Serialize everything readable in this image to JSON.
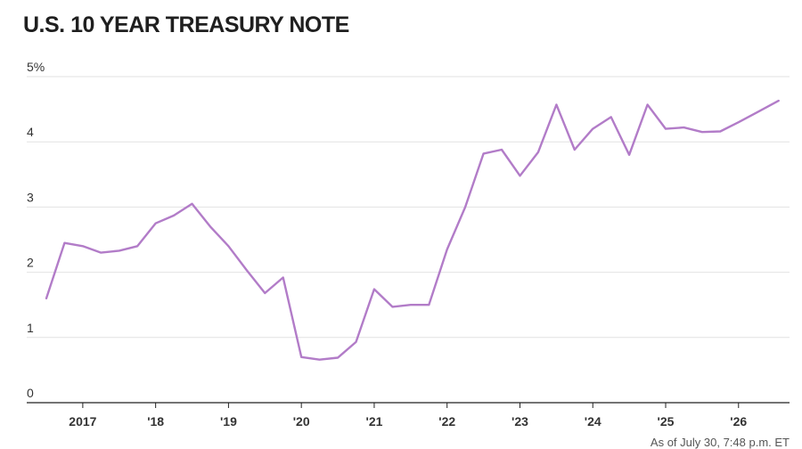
{
  "header": {
    "title": "U.S. 10 YEAR TREASURY NOTE"
  },
  "footnote": "As of July 30, 7:48 p.m. ET",
  "colors": {
    "line": "#b27cc8",
    "grid": "#e2e2e2",
    "axis": "#222222"
  },
  "chart_data": {
    "type": "line",
    "title": "U.S. 10 YEAR TREASURY NOTE",
    "xlabel": "",
    "ylabel": "",
    "x_range": [
      2016.5,
      2026.7
    ],
    "ylim": [
      0,
      5
    ],
    "y_ticks": [
      {
        "value": 0,
        "label": "0"
      },
      {
        "value": 1,
        "label": "1"
      },
      {
        "value": 2,
        "label": "2"
      },
      {
        "value": 3,
        "label": "3"
      },
      {
        "value": 4,
        "label": "4"
      },
      {
        "value": 5,
        "label": "5%"
      }
    ],
    "x_ticks": [
      {
        "value": 2017,
        "label": "2017"
      },
      {
        "value": 2018,
        "label": "'18"
      },
      {
        "value": 2019,
        "label": "'19"
      },
      {
        "value": 2020,
        "label": "'20"
      },
      {
        "value": 2021,
        "label": "'21"
      },
      {
        "value": 2022,
        "label": "'22"
      },
      {
        "value": 2023,
        "label": "'23"
      },
      {
        "value": 2024,
        "label": "'24"
      },
      {
        "value": 2025,
        "label": "'25"
      },
      {
        "value": 2026,
        "label": "'26"
      }
    ],
    "grid": true,
    "series": [
      {
        "x": [
          2016.5,
          2016.75,
          2017.0,
          2017.25,
          2017.5,
          2017.75,
          2018.0,
          2018.25,
          2018.5,
          2018.75,
          2019.0,
          2019.25,
          2019.5,
          2019.75,
          2020.0,
          2020.25,
          2020.5,
          2020.75,
          2021.0,
          2021.25,
          2021.5,
          2021.75,
          2022.0,
          2022.25,
          2022.5,
          2022.75,
          2023.0,
          2023.25,
          2023.5,
          2023.75,
          2024.0,
          2024.25,
          2024.5,
          2024.75,
          2025.0,
          2025.25,
          2025.5,
          2025.75,
          2026.0,
          2026.25,
          2026.55
        ],
        "values": [
          1.6,
          2.45,
          2.4,
          2.3,
          2.33,
          2.4,
          2.75,
          2.87,
          3.05,
          2.7,
          2.4,
          2.03,
          1.68,
          1.92,
          0.7,
          0.66,
          0.69,
          0.93,
          1.74,
          1.47,
          1.5,
          1.5,
          2.35,
          3.0,
          3.82,
          3.88,
          3.48,
          3.84,
          4.57,
          3.88,
          4.2,
          4.38,
          3.8,
          4.57,
          4.2,
          4.22,
          4.15,
          4.16,
          4.3,
          4.45,
          4.63
        ]
      }
    ]
  }
}
